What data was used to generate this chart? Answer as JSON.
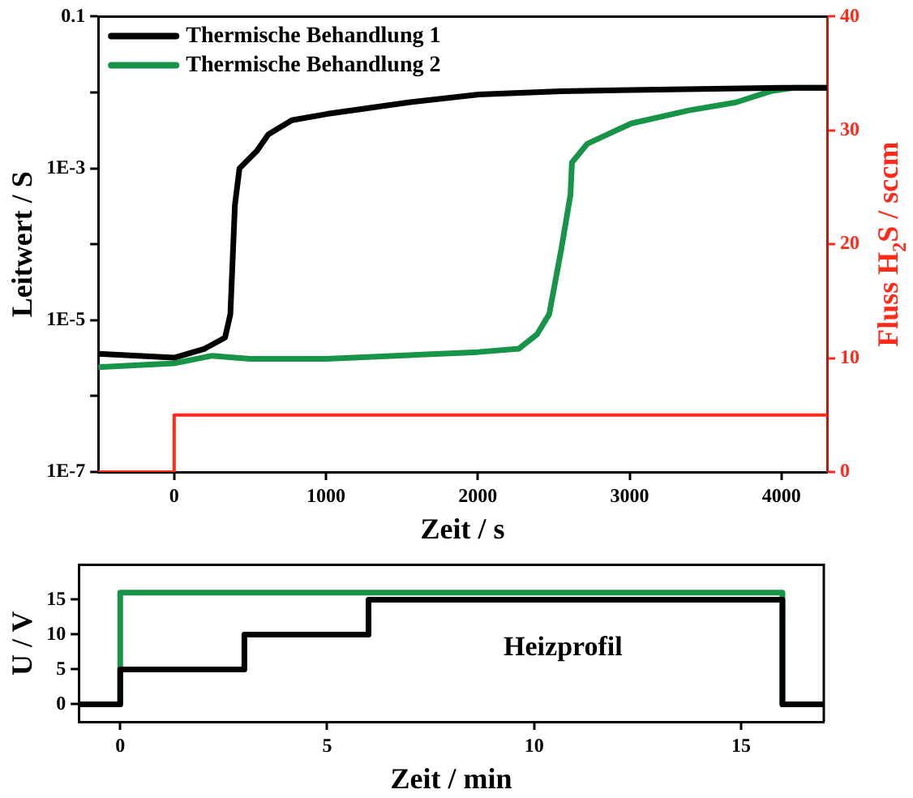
{
  "chart_data": [
    {
      "type": "line",
      "xlabel": "Zeit / s",
      "ylabel": "Leitwert / S",
      "y2label": "Fluss H$_{2}$S / sccm",
      "xlim": [
        -500,
        4300
      ],
      "xticks": [
        0,
        1000,
        2000,
        3000,
        4000
      ],
      "ylim": [
        1e-07,
        0.1
      ],
      "yticks": [
        {
          "value": 1e-07,
          "label": "1E-7"
        },
        {
          "value": 1e-06,
          "label": null
        },
        {
          "value": 1e-05,
          "label": "1E-5"
        },
        {
          "value": 0.0001,
          "label": null
        },
        {
          "value": 0.001,
          "label": "1E-3"
        },
        {
          "value": 0.01,
          "label": null
        },
        0.1
      ],
      "log": "y",
      "y2lim": [
        0,
        40
      ],
      "y2ticks": [
        0,
        10,
        20,
        30,
        40
      ],
      "legend": "top left",
      "grid": false,
      "marker": "none",
      "line_style": "solid",
      "series": [
        {
          "name": "Thermische Behandlung 1",
          "color": "#000000",
          "x": [
            -500,
            0,
            200,
            335,
            370,
            400,
            430,
            545,
            620,
            775,
            1005,
            1545,
            2007,
            2550,
            4000,
            4300
          ],
          "values": [
            3.6e-06,
            3.2e-06,
            4.2e-06,
            5.9e-06,
            1.2e-05,
            0.00033,
            0.001,
            0.0017,
            0.0028,
            0.0043,
            0.0052,
            0.0074,
            0.0094,
            0.0104,
            0.0115,
            0.0115
          ]
        },
        {
          "name": "Thermische Behandlung 2",
          "color": "#179447",
          "x": [
            -500,
            0,
            250,
            500,
            1000,
            2000,
            2270,
            2390,
            2470,
            2550,
            2610,
            2620,
            2720,
            3010,
            3390,
            3700,
            3930,
            4080,
            4300
          ],
          "values": [
            2.4e-06,
            2.7e-06,
            3.4e-06,
            3.1e-06,
            3.1e-06,
            3.8e-06,
            4.2e-06,
            6.5e-06,
            1.2e-05,
            8.7e-05,
            0.00045,
            0.0012,
            0.0021,
            0.0039,
            0.0058,
            0.0074,
            0.0104,
            0.0115,
            0.0115
          ]
        },
        {
          "type": "step",
          "axis": "y2",
          "color": "#ff2a1a",
          "x": [
            -500,
            0,
            4300
          ],
          "values": [
            0,
            5,
            5
          ]
        }
      ]
    },
    {
      "type": "step",
      "xlabel": "Zeit / min",
      "ylabel": "U / V",
      "xlim": [
        -1,
        17
      ],
      "xticks": [
        0,
        5,
        10,
        15
      ],
      "ylim": [
        -2.5,
        20
      ],
      "yticks": [
        0,
        5,
        10,
        15
      ],
      "annotations": [
        "Heizprofil"
      ],
      "grid": false,
      "marker": "none",
      "line_style": "solid",
      "series": [
        {
          "color": "#000000",
          "x": [
            -1,
            0,
            3,
            6,
            16,
            17
          ],
          "values": [
            0,
            5,
            10,
            15,
            0,
            0
          ]
        },
        {
          "color": "#179447",
          "x": [
            -1,
            0,
            16,
            17
          ],
          "values": [
            0,
            16,
            0,
            0
          ]
        }
      ]
    }
  ]
}
